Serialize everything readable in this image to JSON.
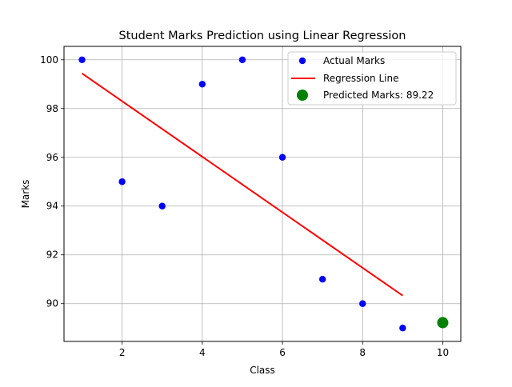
{
  "chart_data": {
    "type": "scatter",
    "title": "Student Marks Prediction using Linear Regression",
    "xlabel": "Class",
    "ylabel": "Marks",
    "xlim": [
      0.55,
      10.45
    ],
    "ylim": [
      88.45,
      100.55
    ],
    "xticks": [
      2,
      4,
      6,
      8,
      10
    ],
    "yticks": [
      90,
      92,
      94,
      96,
      98,
      100
    ],
    "grid": true,
    "legend_position": "top-right",
    "series": [
      {
        "name": "Actual Marks",
        "kind": "scatter",
        "color": "#0000ff",
        "x": [
          1,
          2,
          3,
          4,
          5,
          6,
          7,
          8,
          9
        ],
        "y": [
          100,
          95,
          94,
          99,
          100,
          96,
          91,
          90,
          89
        ]
      },
      {
        "name": "Regression Line",
        "kind": "line",
        "color": "#ff0000",
        "x": [
          1,
          9
        ],
        "y": [
          99.44,
          90.33
        ]
      },
      {
        "name": "Predicted Marks: 89.22",
        "kind": "scatter",
        "color": "#008000",
        "x": [
          10
        ],
        "y": [
          89.22
        ]
      }
    ]
  }
}
